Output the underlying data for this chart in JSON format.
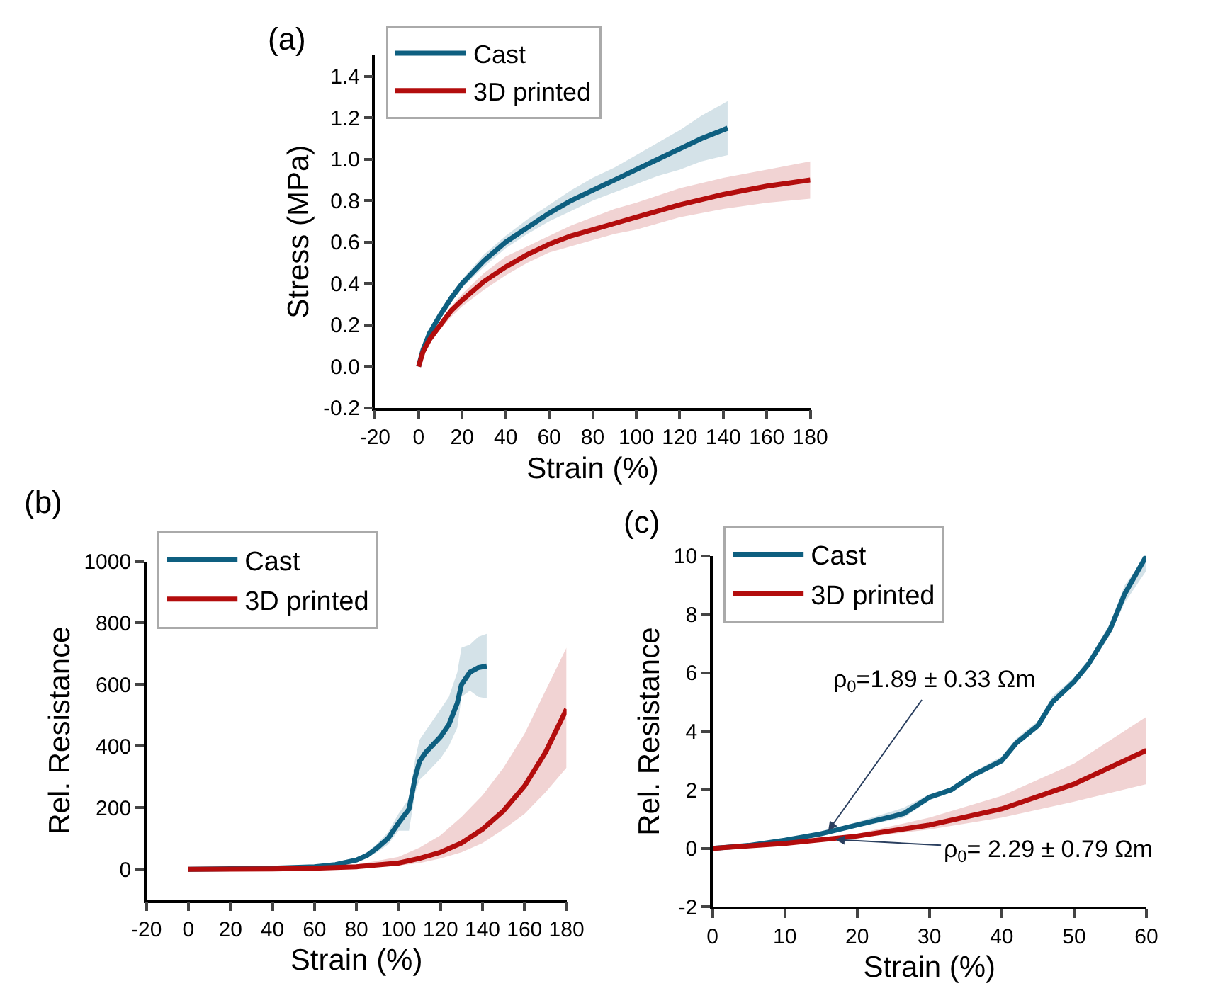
{
  "chart_data": [
    {
      "type": "line",
      "title": "(a)",
      "xlabel": "Strain (%)",
      "ylabel": "Stress (MPa)",
      "xlim": [
        -20,
        180
      ],
      "xticks": [
        -20,
        0,
        20,
        40,
        60,
        80,
        100,
        120,
        140,
        160,
        180
      ],
      "ylim": [
        -0.2,
        1.5
      ],
      "yticks": [
        -0.2,
        {
          "value": 0,
          "label": "0.0"
        },
        0.2,
        0.4,
        0.6,
        0.8,
        {
          "value": 1,
          "label": "1.0"
        },
        1.2,
        1.4
      ],
      "legend": "top left",
      "grid": false,
      "series": [
        {
          "name": "Cast",
          "color": "#0e5f80",
          "x": [
            0,
            2,
            5,
            10,
            15,
            20,
            30,
            40,
            50,
            60,
            70,
            80,
            90,
            100,
            110,
            120,
            130,
            142
          ],
          "values": [
            0,
            0.08,
            0.16,
            0.25,
            0.33,
            0.4,
            0.51,
            0.6,
            0.67,
            0.74,
            0.8,
            0.85,
            0.9,
            0.95,
            1.0,
            1.05,
            1.1,
            1.15
          ],
          "lower": [
            0,
            0.07,
            0.15,
            0.24,
            0.31,
            0.38,
            0.48,
            0.57,
            0.64,
            0.7,
            0.75,
            0.8,
            0.84,
            0.88,
            0.92,
            0.95,
            0.99,
            1.02
          ],
          "upper": [
            0,
            0.09,
            0.17,
            0.27,
            0.35,
            0.42,
            0.54,
            0.63,
            0.71,
            0.78,
            0.85,
            0.91,
            0.96,
            1.02,
            1.08,
            1.14,
            1.21,
            1.28
          ]
        },
        {
          "name": "3D printed",
          "color": "#b30d0d",
          "x": [
            0,
            2,
            5,
            10,
            15,
            20,
            30,
            40,
            50,
            60,
            70,
            80,
            90,
            100,
            120,
            140,
            160,
            180
          ],
          "values": [
            0,
            0.07,
            0.13,
            0.2,
            0.27,
            0.32,
            0.41,
            0.48,
            0.54,
            0.59,
            0.63,
            0.66,
            0.69,
            0.72,
            0.78,
            0.83,
            0.87,
            0.9
          ],
          "lower": [
            0,
            0.06,
            0.12,
            0.18,
            0.24,
            0.29,
            0.37,
            0.44,
            0.5,
            0.55,
            0.58,
            0.61,
            0.64,
            0.66,
            0.72,
            0.76,
            0.79,
            0.81
          ],
          "upper": [
            0,
            0.08,
            0.14,
            0.22,
            0.29,
            0.35,
            0.45,
            0.53,
            0.58,
            0.63,
            0.68,
            0.72,
            0.76,
            0.79,
            0.86,
            0.91,
            0.95,
            0.99
          ]
        }
      ]
    },
    {
      "type": "line",
      "title": "(b)",
      "xlabel": "Strain (%)",
      "ylabel": "Rel. Resistance",
      "xlim": [
        -20,
        180
      ],
      "xticks": [
        -20,
        0,
        20,
        40,
        60,
        80,
        100,
        120,
        140,
        160,
        180
      ],
      "ylim": [
        -100,
        1000
      ],
      "yticks": [
        0,
        200,
        400,
        600,
        800,
        1000
      ],
      "legend": "top left",
      "grid": false,
      "series": [
        {
          "name": "Cast",
          "color": "#0e5f80",
          "x": [
            0,
            40,
            60,
            70,
            80,
            85,
            90,
            95,
            100,
            105,
            108,
            110,
            113,
            120,
            124,
            128,
            130,
            134,
            138,
            142
          ],
          "values": [
            0,
            3,
            8,
            15,
            30,
            45,
            70,
            100,
            150,
            195,
            300,
            350,
            380,
            430,
            470,
            540,
            600,
            640,
            655,
            660
          ],
          "lower": [
            0,
            2,
            6,
            12,
            24,
            36,
            56,
            80,
            125,
            125,
            250,
            290,
            310,
            360,
            400,
            460,
            560,
            580,
            560,
            555
          ],
          "upper": [
            0,
            4,
            10,
            18,
            36,
            54,
            84,
            120,
            180,
            230,
            360,
            420,
            450,
            520,
            560,
            640,
            720,
            730,
            755,
            765
          ]
        },
        {
          "name": "3D printed",
          "color": "#b30d0d",
          "x": [
            0,
            40,
            60,
            80,
            100,
            110,
            120,
            130,
            140,
            150,
            160,
            170,
            180
          ],
          "values": [
            0,
            1,
            3,
            8,
            20,
            35,
            55,
            85,
            130,
            190,
            270,
            380,
            520
          ],
          "lower": [
            0,
            0.5,
            2,
            5,
            12,
            20,
            35,
            55,
            85,
            130,
            180,
            250,
            330
          ],
          "upper": [
            0,
            2,
            5,
            15,
            40,
            70,
            110,
            170,
            240,
            330,
            440,
            580,
            720
          ]
        }
      ]
    },
    {
      "type": "line",
      "title": "(c)",
      "xlabel": "Strain (%)",
      "ylabel": "Rel. Resistance",
      "xlim": [
        0,
        60
      ],
      "xticks": [
        0,
        10,
        20,
        30,
        40,
        50,
        60
      ],
      "ylim": [
        -2,
        10
      ],
      "yticks": [
        -2,
        0,
        2,
        4,
        6,
        8,
        10
      ],
      "legend": "top left",
      "grid": false,
      "annotations": [
        {
          "text": "ρ$_{0}$=1.89 ± 0.33 Ωm",
          "x": 16,
          "y": 0.6
        },
        {
          "text": "ρ$_{0}$= 2.29 ± 0.79 Ωm",
          "x": 17,
          "y": 0.3
        }
      ],
      "series": [
        {
          "name": "Cast",
          "color": "#0e5f80",
          "x": [
            0,
            5,
            10,
            15,
            20,
            25,
            26.5,
            30,
            33,
            36,
            40,
            42,
            45,
            47,
            50,
            52,
            55,
            57,
            60
          ],
          "values": [
            0,
            0.1,
            0.28,
            0.5,
            0.8,
            1.1,
            1.2,
            1.75,
            2.0,
            2.5,
            3.0,
            3.6,
            4.2,
            5.0,
            5.7,
            6.3,
            7.5,
            8.7,
            10
          ],
          "lower": [
            0,
            0.09,
            0.25,
            0.45,
            0.72,
            0.98,
            1.05,
            1.65,
            1.92,
            2.4,
            2.9,
            3.5,
            4.1,
            4.9,
            5.6,
            6.2,
            7.3,
            8.4,
            9.5
          ],
          "upper": [
            0,
            0.11,
            0.31,
            0.56,
            0.9,
            1.28,
            1.4,
            1.85,
            2.08,
            2.6,
            3.15,
            3.75,
            4.35,
            5.2,
            5.85,
            6.45,
            7.7,
            9.0,
            10
          ]
        },
        {
          "name": "3D printed",
          "color": "#b30d0d",
          "x": [
            0,
            10,
            20,
            30,
            40,
            50,
            60
          ],
          "values": [
            0,
            0.17,
            0.42,
            0.8,
            1.35,
            2.2,
            3.35
          ],
          "lower": [
            0,
            0.14,
            0.35,
            0.65,
            1.05,
            1.6,
            2.2
          ],
          "upper": [
            0,
            0.2,
            0.5,
            1.05,
            1.8,
            2.9,
            4.5
          ]
        }
      ]
    }
  ]
}
